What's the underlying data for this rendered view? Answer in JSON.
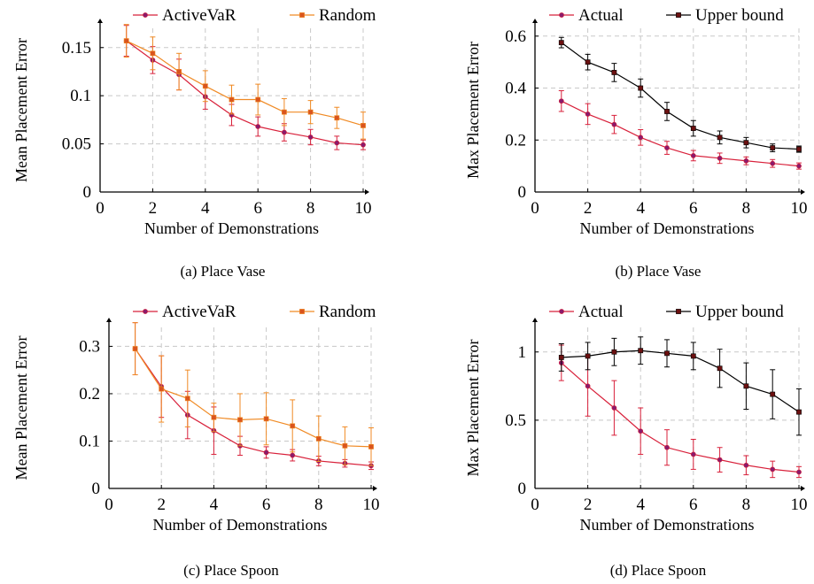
{
  "chart_data": [
    {
      "type": "line",
      "caption": "(a) Place Vase",
      "xlabel": "Number of Demonstrations",
      "ylabel": "Mean Placement Error",
      "xlim": [
        0,
        10
      ],
      "ylim": [
        0,
        0.17
      ],
      "xticks": [
        0,
        2,
        4,
        6,
        8,
        10
      ],
      "xtick_labels": [
        "0",
        "2",
        "4",
        "6",
        "8",
        "10"
      ],
      "yticks": [
        0,
        0.05,
        0.1,
        0.15
      ],
      "ytick_labels": [
        "0",
        "0.05",
        "0.1",
        "0.15"
      ],
      "grid": true,
      "legend": "top",
      "x": [
        1,
        2,
        3,
        4,
        5,
        6,
        7,
        8,
        9,
        10
      ],
      "series": [
        {
          "name": "ActiveVaR",
          "color": "#d8203a",
          "marker": "circle",
          "marker_color": "#8b1a6b",
          "values": [
            0.157,
            0.137,
            0.122,
            0.099,
            0.08,
            0.068,
            0.062,
            0.057,
            0.051,
            0.049
          ],
          "errors": [
            0.016,
            0.014,
            0.016,
            0.013,
            0.011,
            0.01,
            0.009,
            0.008,
            0.007,
            0.005
          ]
        },
        {
          "name": "Random",
          "color": "#f08a24",
          "marker": "square",
          "marker_color": "#d9541e",
          "values": [
            0.157,
            0.144,
            0.125,
            0.11,
            0.096,
            0.096,
            0.083,
            0.083,
            0.077,
            0.069
          ],
          "errors": [
            0.017,
            0.017,
            0.019,
            0.016,
            0.015,
            0.016,
            0.014,
            0.012,
            0.011,
            0.014
          ]
        }
      ]
    },
    {
      "type": "line",
      "caption": "(b) Place Vase",
      "xlabel": "Number of Demonstrations",
      "ylabel": "Max Placement Error",
      "xlim": [
        0,
        10
      ],
      "ylim": [
        0,
        0.63
      ],
      "xticks": [
        0,
        2,
        4,
        6,
        8,
        10
      ],
      "xtick_labels": [
        "0",
        "2",
        "4",
        "6",
        "8",
        "10"
      ],
      "yticks": [
        0,
        0.2,
        0.4,
        0.6
      ],
      "ytick_labels": [
        "0",
        "0.2",
        "0.4",
        "0.6"
      ],
      "grid": true,
      "legend": "top",
      "x": [
        1,
        2,
        3,
        4,
        5,
        6,
        7,
        8,
        9,
        10
      ],
      "series": [
        {
          "name": "Actual",
          "color": "#d8203a",
          "marker": "circle",
          "marker_color": "#8b1a6b",
          "values": [
            0.35,
            0.3,
            0.26,
            0.21,
            0.17,
            0.14,
            0.13,
            0.12,
            0.11,
            0.1
          ],
          "errors": [
            0.04,
            0.04,
            0.035,
            0.03,
            0.025,
            0.02,
            0.02,
            0.015,
            0.015,
            0.012
          ]
        },
        {
          "name": "Upper bound",
          "color": "#000000",
          "marker": "square",
          "marker_color": "#6b1010",
          "values": [
            0.575,
            0.5,
            0.46,
            0.4,
            0.31,
            0.245,
            0.21,
            0.19,
            0.17,
            0.165
          ],
          "errors": [
            0.02,
            0.03,
            0.035,
            0.035,
            0.035,
            0.03,
            0.025,
            0.02,
            0.015,
            0.012
          ]
        }
      ]
    },
    {
      "type": "line",
      "caption": "(c) Place Spoon",
      "xlabel": "Number of Demonstrations",
      "ylabel": "Mean Placement Error",
      "xlim": [
        0,
        10
      ],
      "ylim": [
        0,
        0.34
      ],
      "xticks": [
        0,
        2,
        4,
        6,
        8,
        10
      ],
      "xtick_labels": [
        "0",
        "2",
        "4",
        "6",
        "8",
        "10"
      ],
      "yticks": [
        0,
        0.1,
        0.2,
        0.3
      ],
      "ytick_labels": [
        "0",
        "0.1",
        "0.2",
        "0.3"
      ],
      "grid": true,
      "legend": "top",
      "x": [
        1,
        2,
        3,
        4,
        5,
        6,
        7,
        8,
        9,
        10
      ],
      "series": [
        {
          "name": "ActiveVaR",
          "color": "#d8203a",
          "marker": "circle",
          "marker_color": "#8b1a6b",
          "values": [
            0.295,
            0.215,
            0.155,
            0.122,
            0.09,
            0.076,
            0.07,
            0.058,
            0.053,
            0.048
          ],
          "errors": [
            0.055,
            0.065,
            0.05,
            0.05,
            0.02,
            0.012,
            0.012,
            0.01,
            0.008,
            0.008
          ]
        },
        {
          "name": "Random",
          "color": "#f08a24",
          "marker": "square",
          "marker_color": "#d9541e",
          "values": [
            0.295,
            0.21,
            0.19,
            0.15,
            0.145,
            0.147,
            0.132,
            0.105,
            0.09,
            0.088
          ],
          "errors": [
            0.055,
            0.07,
            0.06,
            0.03,
            0.055,
            0.055,
            0.055,
            0.048,
            0.04,
            0.04
          ]
        }
      ]
    },
    {
      "type": "line",
      "caption": "(d) Place Spoon",
      "xlabel": "Number of Demonstrations",
      "ylabel": "Max Placement Error",
      "xlim": [
        0,
        10
      ],
      "ylim": [
        0,
        1.18
      ],
      "xticks": [
        0,
        2,
        4,
        6,
        8,
        10
      ],
      "xtick_labels": [
        "0",
        "2",
        "4",
        "6",
        "8",
        "10"
      ],
      "yticks": [
        0,
        0.5,
        1
      ],
      "ytick_labels": [
        "0",
        "0.5",
        "1"
      ],
      "grid": true,
      "legend": "top",
      "x": [
        1,
        2,
        3,
        4,
        5,
        6,
        7,
        8,
        9,
        10
      ],
      "series": [
        {
          "name": "Actual",
          "color": "#d8203a",
          "marker": "circle",
          "marker_color": "#8b1a6b",
          "values": [
            0.92,
            0.75,
            0.59,
            0.42,
            0.3,
            0.25,
            0.21,
            0.17,
            0.14,
            0.12
          ],
          "errors": [
            0.13,
            0.22,
            0.2,
            0.17,
            0.13,
            0.11,
            0.09,
            0.07,
            0.06,
            0.04
          ]
        },
        {
          "name": "Upper bound",
          "color": "#000000",
          "marker": "square",
          "marker_color": "#6b1010",
          "values": [
            0.96,
            0.97,
            1.0,
            1.01,
            0.99,
            0.97,
            0.88,
            0.75,
            0.69,
            0.56
          ],
          "errors": [
            0.1,
            0.1,
            0.1,
            0.1,
            0.1,
            0.1,
            0.14,
            0.17,
            0.18,
            0.17
          ]
        }
      ]
    }
  ]
}
